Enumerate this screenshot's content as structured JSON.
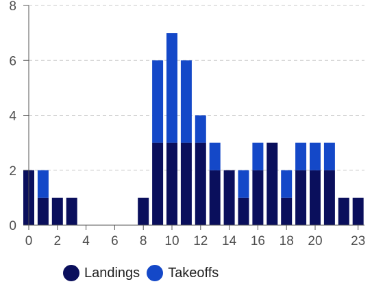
{
  "chart_data": {
    "type": "bar",
    "stacked": true,
    "x": [
      0,
      1,
      2,
      3,
      4,
      5,
      6,
      7,
      8,
      9,
      10,
      11,
      12,
      13,
      14,
      15,
      16,
      17,
      18,
      19,
      20,
      21,
      22,
      23
    ],
    "x_tick_labels": [
      "0",
      "2",
      "4",
      "6",
      "8",
      "10",
      "12",
      "14",
      "16",
      "18",
      "20",
      "23"
    ],
    "x_tick_values": [
      0,
      2,
      4,
      6,
      8,
      10,
      12,
      14,
      16,
      18,
      20,
      23
    ],
    "y_tick_labels": [
      "0",
      "2",
      "4",
      "6",
      "8"
    ],
    "y_tick_values": [
      0,
      2,
      4,
      6,
      8
    ],
    "ylim": [
      0,
      8
    ],
    "grid": "horizontal dashed",
    "legend_position": "bottom-left",
    "series": [
      {
        "name": "Landings",
        "color": "#0a0f5c",
        "values": [
          2,
          1,
          1,
          1,
          0,
          0,
          0,
          0,
          1,
          3,
          3,
          3,
          3,
          2,
          2,
          1,
          2,
          3,
          1,
          2,
          2,
          2,
          1,
          1
        ]
      },
      {
        "name": "Takeoffs",
        "color": "#1448c8",
        "values": [
          0,
          1,
          0,
          0,
          0,
          0,
          0,
          0,
          0,
          3,
          4,
          3,
          1,
          1,
          0,
          1,
          1,
          0,
          1,
          1,
          1,
          1,
          0,
          0
        ]
      }
    ]
  }
}
